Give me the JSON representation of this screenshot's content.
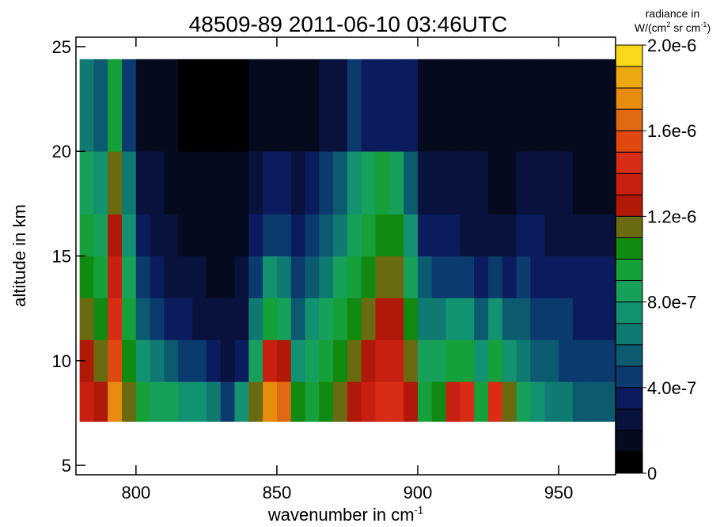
{
  "chart_data": {
    "type": "heatmap",
    "title": "48509-89 2011-06-10 03:46UTC",
    "x_label": "wavenumber in cm",
    "x_label_sup": "-1",
    "y_label": "altitude in km",
    "colorbar_label": [
      "radiance in",
      "W/(cm",
      "2",
      " sr cm",
      "-1",
      ")"
    ],
    "xlim": [
      778.7,
      970.2
    ],
    "xticks": [
      800,
      850,
      900,
      950
    ],
    "ylim": [
      4.55,
      25.45
    ],
    "yticks": [
      5,
      10,
      15,
      20,
      25
    ],
    "x_edges": [
      780,
      785,
      790,
      795,
      800,
      805,
      810,
      815,
      820,
      825,
      830,
      835,
      840,
      845,
      850,
      855,
      860,
      865,
      870,
      875,
      880,
      885,
      890,
      895,
      900,
      905,
      910,
      915,
      920,
      925,
      930,
      935,
      940,
      945,
      950,
      955,
      960,
      965,
      970
    ],
    "y_edges": [
      7.1,
      9,
      11,
      13,
      15,
      17,
      20,
      24.4
    ],
    "z": [
      [
        1.35e-06,
        1.25e-06,
        1.75e-06,
        1.15e-06,
        9.5e-07,
        8.5e-07,
        8.5e-07,
        7.5e-07,
        7.5e-07,
        6.5e-07,
        4.5e-07,
        7.5e-07,
        1.15e-06,
        1.75e-06,
        1.65e-06,
        1.05e-06,
        9.5e-07,
        1.05e-06,
        1.15e-06,
        1.25e-06,
        1.35e-06,
        1.45e-06,
        1.45e-06,
        1.25e-06,
        9.5e-07,
        1.05e-06,
        1.35e-06,
        1.45e-06,
        9.5e-07,
        1.45e-06,
        1.15e-06,
        8.5e-07,
        7.5e-07,
        6.5e-07,
        6.5e-07,
        5.5e-07,
        5.5e-07,
        5.5e-07
      ],
      [
        1.25e-06,
        1.15e-06,
        1.55e-06,
        1.05e-06,
        7.5e-07,
        6.5e-07,
        5.5e-07,
        4.5e-07,
        4.5e-07,
        3.5e-07,
        2.5e-07,
        3.5e-07,
        8.5e-07,
        1.35e-06,
        1.25e-06,
        7.5e-07,
        8.5e-07,
        9.5e-07,
        1.05e-06,
        1.15e-06,
        1.25e-06,
        1.35e-06,
        1.35e-06,
        1.15e-06,
        8.5e-07,
        8.5e-07,
        9.5e-07,
        9.5e-07,
        7.5e-07,
        9.5e-07,
        7.5e-07,
        6.5e-07,
        5.5e-07,
        5.5e-07,
        4.5e-07,
        4.5e-07,
        4.5e-07,
        4.5e-07
      ],
      [
        1.15e-06,
        1.05e-06,
        1.45e-06,
        9.5e-07,
        5.5e-07,
        4.5e-07,
        3.5e-07,
        3.5e-07,
        2.5e-07,
        2.5e-07,
        2.5e-07,
        2.5e-07,
        6.5e-07,
        9.5e-07,
        8.5e-07,
        5.5e-07,
        7.5e-07,
        8.5e-07,
        9.5e-07,
        1.05e-06,
        1.15e-06,
        1.25e-06,
        1.25e-06,
        1.05e-06,
        6.5e-07,
        6.5e-07,
        7.5e-07,
        7.5e-07,
        5.5e-07,
        7.5e-07,
        5.5e-07,
        5.5e-07,
        4.5e-07,
        4.5e-07,
        4.5e-07,
        3.5e-07,
        3.5e-07,
        3.5e-07
      ],
      [
        1.05e-06,
        9.5e-07,
        1.35e-06,
        8.5e-07,
        4.5e-07,
        3.5e-07,
        2.5e-07,
        2.5e-07,
        2.5e-07,
        1.5e-07,
        1.5e-07,
        2.5e-07,
        4.5e-07,
        7.5e-07,
        6.5e-07,
        4.5e-07,
        5.5e-07,
        6.5e-07,
        8.5e-07,
        9.5e-07,
        1.05e-06,
        1.15e-06,
        1.15e-06,
        8.5e-07,
        5.5e-07,
        4.5e-07,
        4.5e-07,
        4.5e-07,
        3.5e-07,
        4.5e-07,
        3.5e-07,
        4.5e-07,
        3.5e-07,
        3.5e-07,
        3.5e-07,
        3.5e-07,
        3.5e-07,
        3.5e-07
      ],
      [
        9.5e-07,
        8.5e-07,
        1.25e-06,
        7.5e-07,
        3.5e-07,
        2.5e-07,
        2.5e-07,
        1.5e-07,
        1.5e-07,
        1.5e-07,
        1.5e-07,
        1.5e-07,
        3.5e-07,
        4.5e-07,
        4.5e-07,
        3.5e-07,
        4.5e-07,
        5.5e-07,
        6.5e-07,
        8.5e-07,
        9.5e-07,
        1.05e-06,
        1.05e-06,
        7.5e-07,
        3.5e-07,
        3.5e-07,
        3.5e-07,
        2.5e-07,
        2.5e-07,
        2.5e-07,
        2.5e-07,
        3.5e-07,
        3.5e-07,
        2.5e-07,
        2.5e-07,
        2.5e-07,
        2.5e-07,
        2.5e-07
      ],
      [
        8.5e-07,
        7.5e-07,
        1.15e-06,
        6.5e-07,
        2.5e-07,
        2.5e-07,
        1.5e-07,
        1.5e-07,
        1.5e-07,
        1.5e-07,
        1.5e-07,
        1.5e-07,
        2.5e-07,
        3.5e-07,
        3.5e-07,
        2.5e-07,
        3.5e-07,
        4.5e-07,
        5.5e-07,
        7.5e-07,
        8.5e-07,
        9.5e-07,
        8.5e-07,
        5.5e-07,
        2.5e-07,
        2.5e-07,
        2.5e-07,
        2.5e-07,
        2.5e-07,
        1.5e-07,
        1.5e-07,
        2.5e-07,
        2.5e-07,
        2.5e-07,
        2.5e-07,
        1.5e-07,
        1.5e-07,
        1.5e-07
      ],
      [
        6.5e-07,
        5.5e-07,
        9.5e-07,
        4.5e-07,
        1.5e-07,
        1.5e-07,
        1.5e-07,
        5e-08,
        5e-08,
        5e-08,
        5e-08,
        5e-08,
        1.5e-07,
        1.5e-07,
        1.5e-07,
        1.5e-07,
        1.5e-07,
        2.5e-07,
        2.5e-07,
        4.5e-07,
        3.5e-07,
        3.5e-07,
        3.5e-07,
        3.5e-07,
        1.5e-07,
        1.5e-07,
        1.5e-07,
        1.5e-07,
        1.5e-07,
        1.5e-07,
        1.5e-07,
        1.5e-07,
        1.5e-07,
        1.5e-07,
        1.5e-07,
        1.5e-07,
        1.5e-07,
        1.5e-07
      ]
    ],
    "clim": [
      0,
      2e-06
    ],
    "colors": [
      "#000000",
      "#060a1e",
      "#09123c",
      "#0b1c5e",
      "#0a3a6e",
      "#0c5a70",
      "#0f7a72",
      "#129270",
      "#17a05a",
      "#16a03a",
      "#108a10",
      "#6a6a10",
      "#b01808",
      "#c82010",
      "#d82c14",
      "#e04810",
      "#e06a14",
      "#e88c10",
      "#eca810",
      "#f8d818"
    ],
    "cticks": [
      0,
      {
        "value": 4e-07,
        "label": "4.0e-7"
      },
      {
        "value": 8e-07,
        "label": "8.0e-7"
      },
      {
        "value": 1.2e-06,
        "label": "1.2e-6"
      },
      {
        "value": 1.6e-06,
        "label": "1.6e-6"
      },
      {
        "value": 2e-06,
        "label": "2.0e-6"
      }
    ]
  }
}
